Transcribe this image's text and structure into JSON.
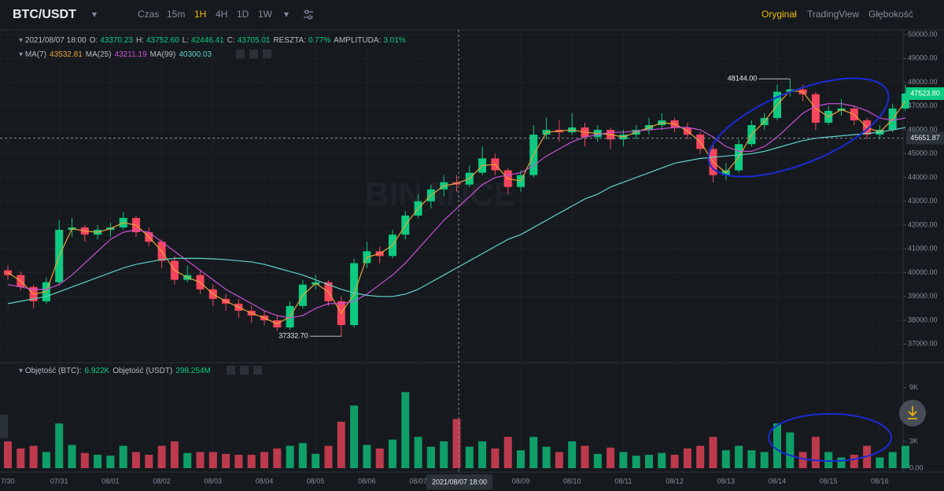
{
  "toolbar": {
    "symbol": "BTC/USDT",
    "intervals": [
      "Czas",
      "15m",
      "1H",
      "4H",
      "1D",
      "1W"
    ],
    "views": [
      "Oryginał",
      "TradingView",
      "Głębokość"
    ],
    "watermark": "BINANCE"
  },
  "chart_data": {
    "type": "candlestick",
    "info": {
      "time": "2021/08/07 18:00",
      "o_label": "O:",
      "o": "43370.23",
      "h_label": "H:",
      "h": "43752.60",
      "l_label": "L:",
      "l": "42446.41",
      "c_label": "C:",
      "c": "43705.01",
      "change_label": "RESZTA:",
      "change": "0.77%",
      "amp_label": "AMPLITUDA:",
      "amp": "3.01%"
    },
    "categories": [
      "7/30",
      null,
      null,
      null,
      "07/31",
      null,
      null,
      null,
      "08/01",
      null,
      null,
      null,
      "08/02",
      null,
      null,
      null,
      "08/03",
      null,
      null,
      null,
      "08/04",
      null,
      null,
      null,
      "08/05",
      null,
      null,
      null,
      "08/06",
      null,
      null,
      null,
      "08/07",
      null,
      null,
      null,
      null,
      null,
      null,
      null,
      "08/09",
      null,
      null,
      null,
      "08/10",
      null,
      null,
      null,
      "08/11",
      null,
      null,
      null,
      "08/12",
      null,
      null,
      null,
      "08/13",
      null,
      null,
      null,
      "08/14",
      null,
      null,
      null,
      "08/15",
      null,
      null,
      null,
      "08/16",
      null,
      null
    ],
    "open": [
      40100,
      39900,
      39400,
      38800,
      39600,
      41800,
      41900,
      41600,
      41800,
      41900,
      42300,
      41700,
      41300,
      40500,
      39700,
      39900,
      39300,
      38900,
      38700,
      38400,
      38200,
      38000,
      37700,
      38600,
      39500,
      39600,
      38800,
      37800,
      40400,
      40900,
      40700,
      41600,
      42400,
      43000,
      43500,
      43800,
      43700,
      44200,
      44800,
      44300,
      43600,
      44100,
      45800,
      46000,
      45900,
      46100,
      45700,
      46000,
      45600,
      45800,
      46000,
      46200,
      46400,
      46100,
      45800,
      45200,
      44100,
      44300,
      45400,
      46200,
      46500,
      47600,
      47700,
      47500,
      46300,
      46800,
      46900,
      46400,
      45800,
      46000,
      46900
    ],
    "high": [
      40300,
      40050,
      39500,
      39800,
      42200,
      42300,
      42000,
      42000,
      42100,
      42550,
      42400,
      41900,
      41400,
      40700,
      40300,
      40100,
      39500,
      39100,
      38900,
      38600,
      38400,
      38200,
      38800,
      39700,
      39900,
      39700,
      39000,
      40600,
      41300,
      41100,
      41800,
      42600,
      43300,
      43700,
      44100,
      44100,
      44500,
      45300,
      45000,
      44400,
      44300,
      46200,
      46500,
      46400,
      46700,
      46300,
      46200,
      46100,
      46000,
      46200,
      46500,
      46700,
      46500,
      46300,
      45900,
      45400,
      44600,
      45600,
      46400,
      46700,
      47900,
      48144,
      47900,
      47600,
      47000,
      47300,
      47000,
      46500,
      46200,
      47100,
      47900
    ],
    "low": [
      39700,
      39250,
      38500,
      38700,
      39500,
      41500,
      41300,
      41400,
      41500,
      41800,
      41500,
      41100,
      40200,
      39500,
      39600,
      39100,
      38600,
      38400,
      38100,
      37900,
      37800,
      37550,
      37600,
      38500,
      39300,
      38600,
      37332.7,
      37700,
      40200,
      40400,
      40600,
      41400,
      42300,
      42700,
      43200,
      43400,
      43600,
      44100,
      44100,
      43300,
      43400,
      44000,
      45600,
      45500,
      45800,
      45300,
      45500,
      45200,
      45300,
      45600,
      45800,
      46000,
      45900,
      45600,
      45000,
      43800,
      43900,
      44200,
      45300,
      46000,
      46400,
      47400,
      47200,
      46000,
      46200,
      46600,
      46200,
      45600,
      45600,
      45900,
      46800
    ],
    "close": [
      39900,
      39400,
      38800,
      39600,
      41800,
      41900,
      41600,
      41800,
      41900,
      42300,
      41700,
      41300,
      40500,
      39700,
      39900,
      39300,
      38900,
      38700,
      38400,
      38200,
      38000,
      37700,
      38600,
      39500,
      39600,
      38800,
      37800,
      40400,
      40900,
      40700,
      41600,
      42400,
      43000,
      43500,
      43800,
      43700,
      44200,
      44800,
      44300,
      43600,
      44100,
      45800,
      46000,
      45900,
      46100,
      45700,
      46000,
      45600,
      45800,
      46000,
      46200,
      46400,
      46100,
      45800,
      45200,
      44100,
      44300,
      45400,
      46200,
      46500,
      47600,
      47700,
      47500,
      46300,
      46800,
      46900,
      46400,
      45800,
      46000,
      46900,
      47523.8
    ],
    "up_color": "#0ecb81",
    "down_color": "#f6465d",
    "series": [
      {
        "name": "MA(7)",
        "legend_value": "43532.81",
        "color": "#e9a23b",
        "values": [
          40000,
          39650,
          39100,
          39200,
          40700,
          41850,
          41750,
          41700,
          41850,
          42100,
          42000,
          41500,
          40900,
          40100,
          39800,
          39600,
          39100,
          38800,
          38550,
          38300,
          38100,
          37850,
          38150,
          39050,
          39550,
          39200,
          38300,
          39100,
          40650,
          40800,
          41150,
          42000,
          42700,
          43250,
          43650,
          43750,
          43950,
          44500,
          44550,
          43950,
          43850,
          44950,
          45900,
          45950,
          46000,
          45900,
          45850,
          45800,
          45700,
          45900,
          46100,
          46300,
          46250,
          45950,
          45500,
          44650,
          44200,
          44850,
          45800,
          46350,
          47050,
          47650,
          47600,
          46900,
          46550,
          46850,
          46650,
          46100,
          45900,
          46450,
          47200
        ]
      },
      {
        "name": "MA(25)",
        "legend_value": "43211.19",
        "color": "#c94fd6",
        "values": [
          39500,
          39400,
          39300,
          39300,
          39500,
          39900,
          40400,
          40900,
          41400,
          41700,
          41800,
          41700,
          41300,
          40900,
          40500,
          40100,
          39700,
          39300,
          39000,
          38700,
          38400,
          38200,
          38100,
          38200,
          38500,
          38700,
          38700,
          38800,
          39100,
          39500,
          39900,
          40400,
          41000,
          41600,
          42200,
          42700,
          43200,
          43700,
          44000,
          44100,
          44200,
          44500,
          44900,
          45200,
          45500,
          45700,
          45800,
          45900,
          45900,
          45950,
          46000,
          46050,
          46100,
          46100,
          46000,
          45700,
          45300,
          45100,
          45100,
          45300,
          45700,
          46200,
          46700,
          47000,
          47100,
          47100,
          47000,
          46800,
          46500,
          46400,
          46500
        ]
      },
      {
        "name": "MA(99)",
        "legend_value": "40300.03",
        "color": "#5fd3c9",
        "values": [
          38700,
          38800,
          38900,
          39000,
          39200,
          39400,
          39600,
          39800,
          40000,
          40200,
          40350,
          40450,
          40550,
          40600,
          40600,
          40600,
          40580,
          40550,
          40500,
          40450,
          40350,
          40200,
          40050,
          39900,
          39700,
          39500,
          39300,
          39150,
          39050,
          39000,
          39000,
          39100,
          39300,
          39600,
          39900,
          40200,
          40500,
          40800,
          41100,
          41400,
          41600,
          41900,
          42200,
          42500,
          42800,
          43100,
          43300,
          43600,
          43800,
          44000,
          44200,
          44400,
          44600,
          44700,
          44800,
          44850,
          44900,
          44950,
          45000,
          45100,
          45250,
          45400,
          45550,
          45650,
          45700,
          45750,
          45800,
          45850,
          45900,
          46000,
          46100
        ]
      }
    ],
    "ylim": [
      36250,
      50200
    ],
    "yticks": [
      {
        "value": 37000,
        "label": "37000.00"
      },
      {
        "value": 38000,
        "label": "38000.00"
      },
      {
        "value": 39000,
        "label": "39000.00"
      },
      {
        "value": 40000,
        "label": "40000.00"
      },
      {
        "value": 41000,
        "label": "41000.00"
      },
      {
        "value": 42000,
        "label": "42000.00"
      },
      {
        "value": 43000,
        "label": "43000.00"
      },
      {
        "value": 44000,
        "label": "44000.00"
      },
      {
        "value": 45000,
        "label": "45000.00"
      },
      {
        "value": 46000,
        "label": "46000.00"
      },
      {
        "value": 47000,
        "label": "47000.00"
      },
      {
        "value": 48000,
        "label": "48000.00"
      },
      {
        "value": 49000,
        "label": "49000.00"
      },
      {
        "value": 50000,
        "label": "50000.00"
      }
    ],
    "grid": true,
    "annotations": [
      {
        "kind": "high",
        "value": 48144,
        "label": "48144.00"
      },
      {
        "kind": "low",
        "value": 37332.7,
        "label": "37332.70"
      }
    ],
    "crosshair": {
      "value": 45651.87,
      "label": "45651.87",
      "time_label": "2021/08/07 18:00"
    },
    "last_price": {
      "value": 47523.8,
      "label": "47523.80"
    },
    "volume": {
      "name": "Objętość (BTC):",
      "value_label": "6.922K",
      "name2": "Objętość (USDT)",
      "value_label2": "298.254M",
      "values": [
        3000,
        2200,
        2500,
        1800,
        5000,
        2600,
        1700,
        1500,
        1400,
        2500,
        1800,
        1500,
        2500,
        3000,
        1700,
        1800,
        1800,
        1600,
        1500,
        1500,
        1800,
        2200,
        2500,
        2800,
        1600,
        2500,
        5200,
        7000,
        2600,
        2200,
        3200,
        8500,
        3500,
        2400,
        3000,
        5500,
        2400,
        3000,
        2200,
        3500,
        2000,
        3500,
        2400,
        1800,
        3000,
        2500,
        1600,
        2300,
        1800,
        1400,
        1500,
        1700,
        1500,
        2200,
        2500,
        3500,
        2000,
        2500,
        2000,
        1800,
        5000,
        4000,
        1800,
        3500,
        1800,
        1200,
        1500,
        2500,
        1200,
        1800,
        2500
      ],
      "ylim": [
        0,
        11700
      ],
      "yticks": [
        {
          "value": 0,
          "label": "0.00"
        },
        {
          "value": 3000,
          "label": "3K"
        },
        {
          "value": 9000,
          "label": "9K"
        }
      ]
    }
  }
}
